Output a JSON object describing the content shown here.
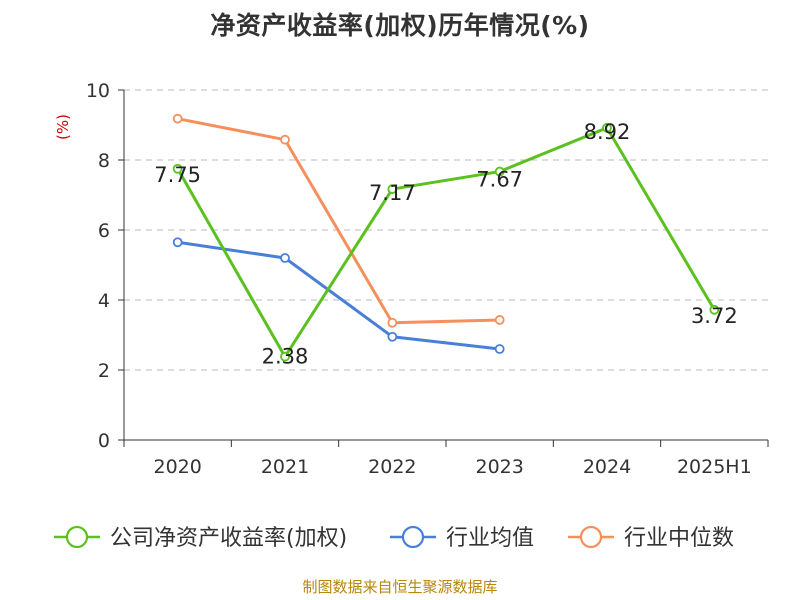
{
  "chart_data": {
    "type": "line",
    "title": "净资产收益率(加权)历年情况(%)",
    "ylabel": "(%)",
    "xlabel": "",
    "categories": [
      "2020",
      "2021",
      "2022",
      "2023",
      "2024",
      "2025H1"
    ],
    "ylim": [
      0,
      10
    ],
    "yticks": [
      0,
      2,
      4,
      6,
      8,
      10
    ],
    "grid": true,
    "legend_position": "bottom",
    "series": [
      {
        "name": "公司净资产收益率(加权)",
        "values": [
          7.75,
          2.38,
          7.17,
          7.67,
          8.92,
          3.72
        ],
        "labels": [
          "7.75",
          "2.38",
          "7.17",
          "7.67",
          "8.92",
          "3.72"
        ],
        "color": "#5ac11f"
      },
      {
        "name": "行业均值",
        "values": [
          5.65,
          5.2,
          2.95,
          2.6,
          null,
          null
        ],
        "color": "#4a7fd8"
      },
      {
        "name": "行业中位数",
        "values": [
          9.18,
          8.58,
          3.35,
          3.43,
          null,
          null
        ],
        "color": "#f58f5c"
      }
    ]
  },
  "source_note": "制图数据来自恒生聚源数据库",
  "colors": {
    "axis": "#333333",
    "grid": "#bbbbbb",
    "ylabel": "#cc0000",
    "title": "#333333",
    "source": "#b8860b"
  }
}
